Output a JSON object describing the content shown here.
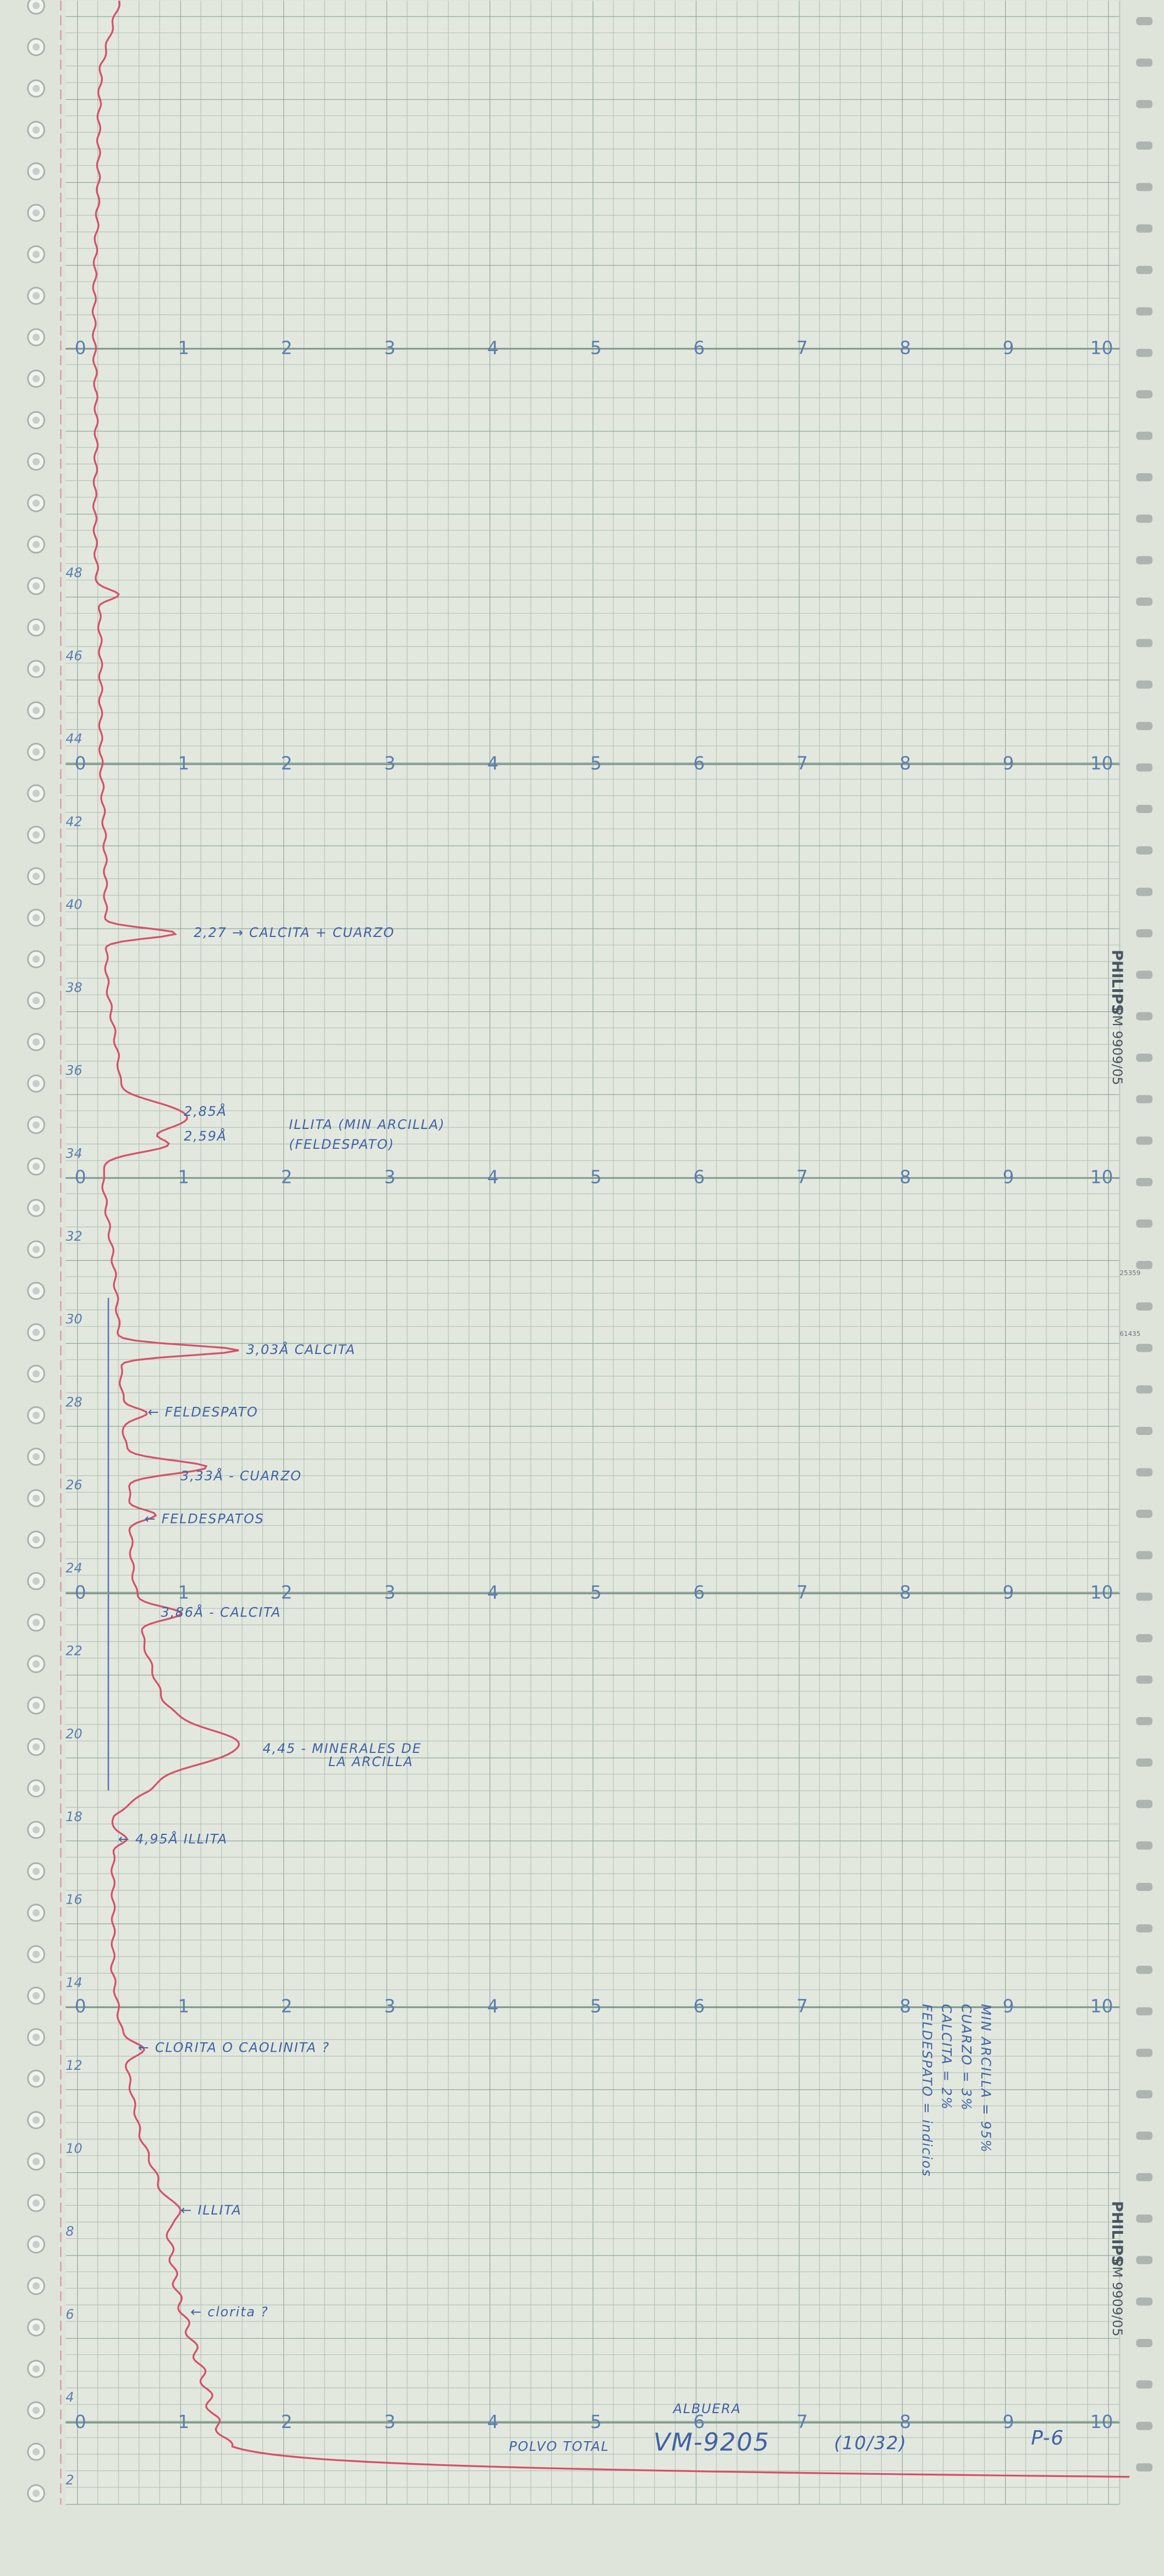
{
  "scale_labels": [
    0,
    1,
    2,
    3,
    4,
    5,
    6,
    7,
    8,
    9,
    10
  ],
  "angle_labels": [
    48,
    46,
    44,
    42,
    40,
    38,
    36,
    34,
    32,
    30,
    28,
    26,
    24,
    22,
    20,
    18,
    16,
    14,
    12,
    10,
    8,
    6,
    4,
    2
  ],
  "annotations": [
    "2,27 → CALCITA + CUARZO",
    "2,85Å",
    "2,59Å",
    "ILLITA (MIN ARCILLA)",
    "(FELDESPATO)",
    "3,03Å CALCITA",
    "← FELDESPATO",
    "3,33Å - CUARZO",
    "← FELDESPATOS",
    "3,86Å - CALCITA",
    "4,45 - MINERALES DE",
    "LA ARCILLA",
    "← 4,95Å ILLITA",
    "← CLORITA O CAOLINITA ?",
    "← ILLITA",
    "← clorita ?"
  ],
  "summary": [
    "MIN ARCILLA = 95%",
    "CUARZO = 3%",
    "CALCITA = 2%",
    "FELDESPATO = indicios"
  ],
  "footer": {
    "site": "ALBUERA",
    "sample_type": "POLVO TOTAL",
    "sample_id": "VM-9205",
    "ref": "(10/32)",
    "profile": "P-6"
  },
  "brand": "PHILIPS",
  "model": "PM 9909/05",
  "codes": [
    "25359",
    "61435"
  ]
}
